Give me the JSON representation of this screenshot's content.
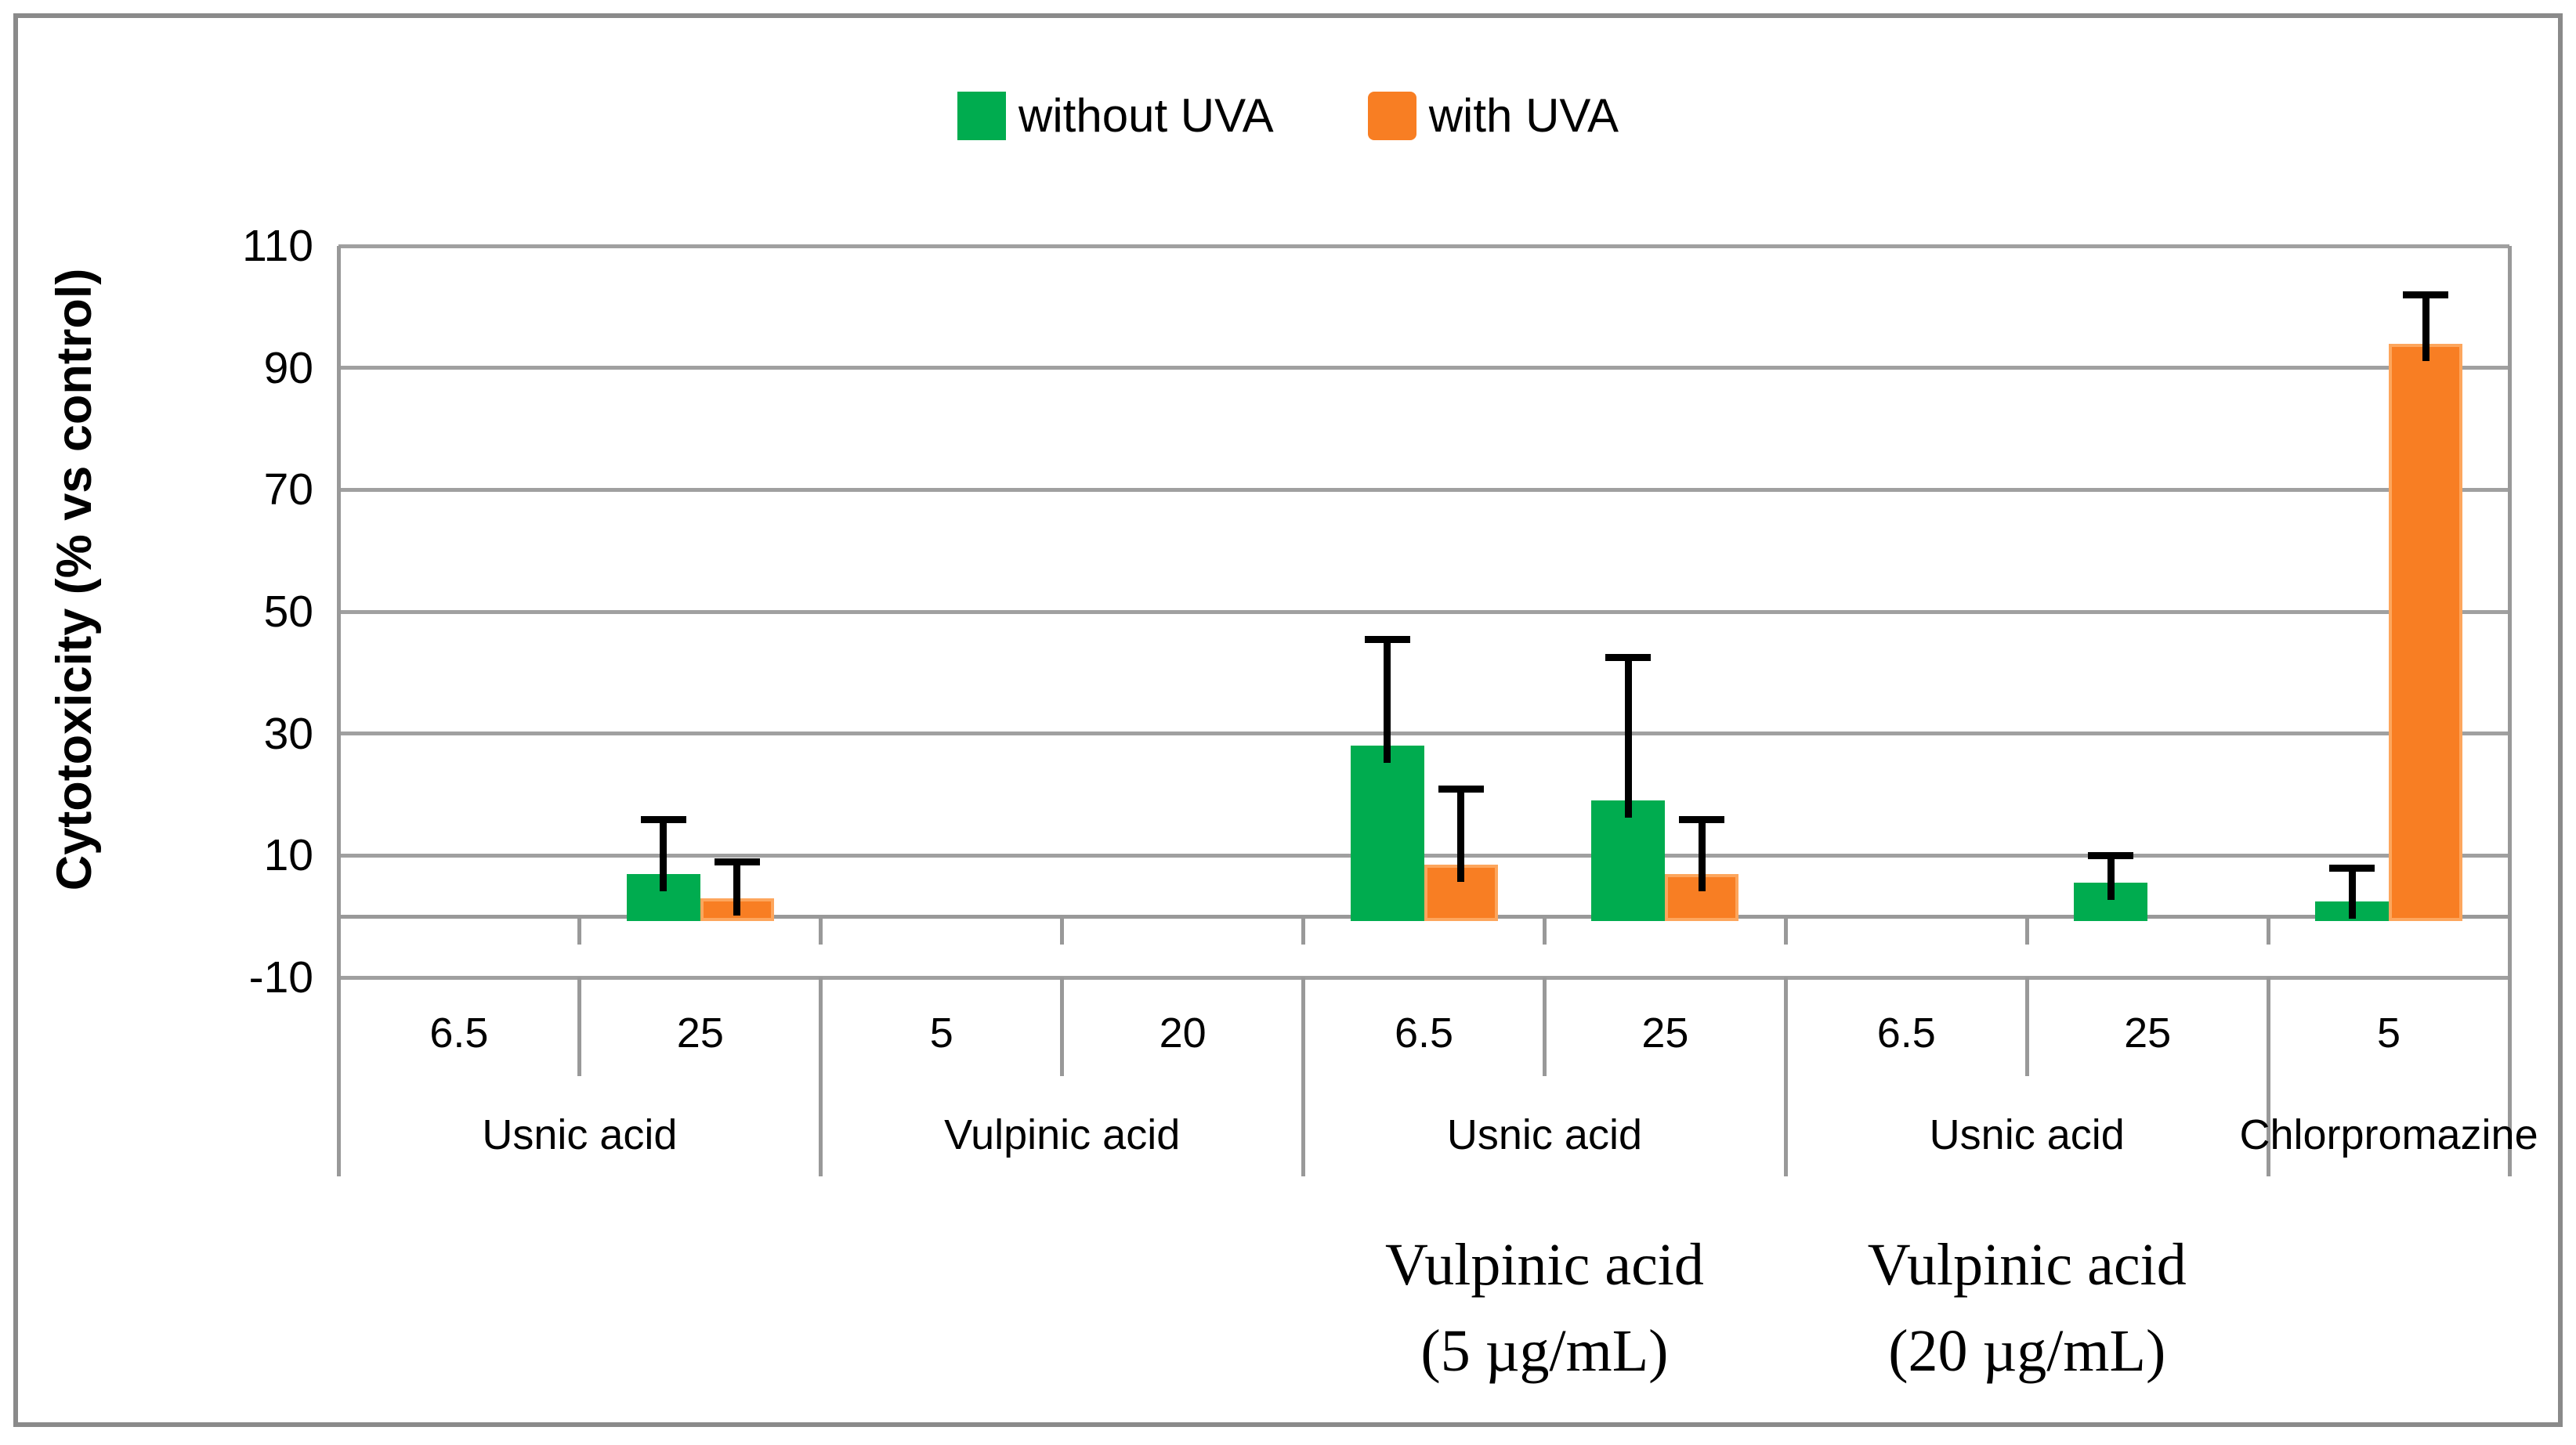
{
  "figure": {
    "background": "#FFFFFF",
    "frame_color": "#8A8A8A"
  },
  "chart_data": {
    "type": "bar",
    "title": "",
    "ylabel": "Cytotoxicity (% vs control)",
    "xlabel": "",
    "ylim": [
      -10,
      110
    ],
    "ytick_step": 20,
    "yticks": [
      110,
      90,
      70,
      50,
      30,
      10,
      -10
    ],
    "grid": "horizontal",
    "legend_position": "top-center",
    "legend": [
      {
        "label": "without UVA",
        "color": "#00AC4F"
      },
      {
        "label": "with UVA",
        "color": "#F87E23"
      }
    ],
    "groups": [
      {
        "name": "Usnic acid",
        "categories": [
          {
            "conc": "6.5",
            "bars": []
          },
          {
            "conc": "25",
            "bars": [
              {
                "series": "without UVA",
                "value": 7,
                "err_top": 16
              },
              {
                "series": "with UVA",
                "value": 3,
                "err_top": 9
              }
            ]
          }
        ]
      },
      {
        "name": "Vulpinic acid",
        "categories": [
          {
            "conc": "5",
            "bars": []
          },
          {
            "conc": "20",
            "bars": []
          }
        ]
      },
      {
        "name": "Usnic acid",
        "categories": [
          {
            "conc": "6.5",
            "bars": [
              {
                "series": "without UVA",
                "value": 28,
                "err_top": 45.5
              },
              {
                "series": "with UVA",
                "value": 8.5,
                "err_top": 21
              }
            ]
          },
          {
            "conc": "25",
            "bars": [
              {
                "series": "without UVA",
                "value": 19,
                "err_top": 42.5
              },
              {
                "series": "with UVA",
                "value": 7,
                "err_top": 16
              }
            ]
          }
        ]
      },
      {
        "name": "Usnic acid",
        "categories": [
          {
            "conc": "6.5",
            "bars": []
          },
          {
            "conc": "25",
            "bars": [
              {
                "series": "without UVA",
                "value": 5.5,
                "err_top": 10
              }
            ]
          }
        ]
      },
      {
        "name": "Chlorpromazine",
        "categories": [
          {
            "conc": "5",
            "bars": [
              {
                "series": "without UVA",
                "value": 2.5,
                "err_top": 8
              },
              {
                "series": "with UVA",
                "value": 94,
                "err_top": 102
              }
            ]
          }
        ]
      }
    ],
    "sub_labels": [
      {
        "anchor_group": 2,
        "lines": [
          "Vulpinic acid",
          "(5 µg/mL)"
        ]
      },
      {
        "anchor_group": 3,
        "lines": [
          "Vulpinic acid",
          "(20 µg/mL)"
        ]
      }
    ],
    "colors": {
      "without_uva": "#00AC4F",
      "with_uva": "#F87E23",
      "with_uva_border": "#FDA65D",
      "gridline": "#A0A0A0",
      "axis": "#999999",
      "error_bar": "#000000"
    }
  }
}
